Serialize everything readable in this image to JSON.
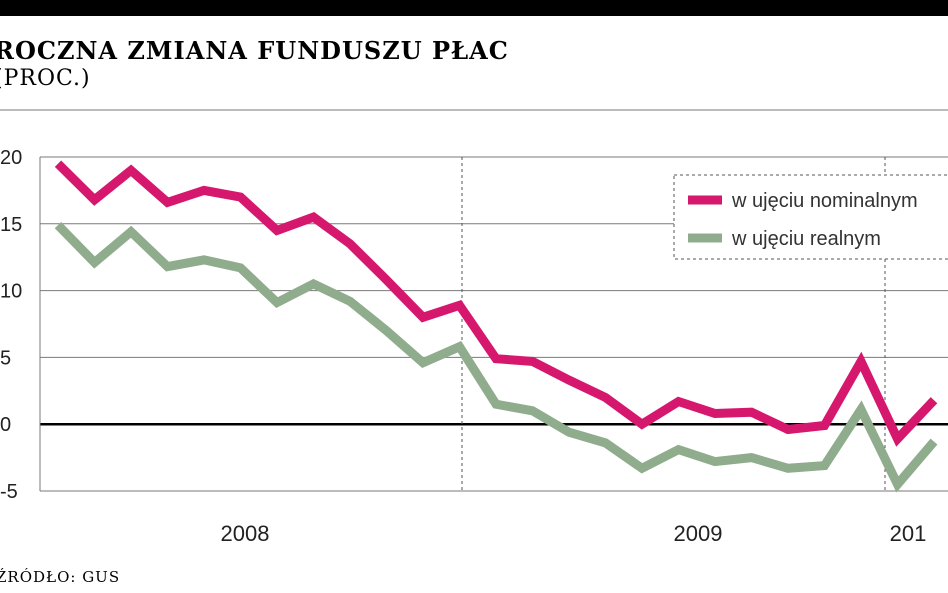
{
  "header": {
    "title": "ROCZNA ZMIANA FUNDUSZU PŁAC",
    "subtitle": "(PROC.)"
  },
  "footer": {
    "source": "ŹRÓDŁO: GUS"
  },
  "colors": {
    "nominal": "#d6176e",
    "real": "#8fac8c",
    "grid": "#7a7a7a",
    "zero": "#000000"
  },
  "chart_data": {
    "type": "line",
    "title": "ROCZNA ZMIANA FUNDUSZU PŁAC",
    "subtitle": "(PROC.)",
    "ylim": [
      -5,
      20
    ],
    "yticks": [
      20,
      15,
      10,
      5,
      0,
      -5
    ],
    "ytick_labels": [
      "20",
      "15",
      "10",
      "5",
      "0",
      "-5"
    ],
    "year_labels": [
      "2008",
      "2009",
      "201"
    ],
    "legend_position": "top-right",
    "grid": true,
    "series": [
      {
        "name": "w ujęciu nominalnym",
        "values": [
          19.5,
          16.8,
          19.0,
          16.6,
          17.5,
          17.0,
          14.5,
          15.5,
          13.5,
          10.8,
          8.0,
          8.9,
          4.9,
          4.7,
          3.3,
          2.0,
          0.0,
          1.7,
          0.8,
          0.9,
          -0.4,
          -0.1,
          4.7,
          -1.1,
          1.8
        ]
      },
      {
        "name": "w ujęciu realnym",
        "values": [
          14.9,
          12.1,
          14.4,
          11.8,
          12.3,
          11.7,
          9.1,
          10.5,
          9.2,
          7.0,
          4.6,
          5.8,
          1.5,
          1.0,
          -0.6,
          -1.4,
          -3.3,
          -1.9,
          -2.8,
          -2.5,
          -3.3,
          -3.1,
          1.1,
          -4.5,
          -1.3
        ]
      }
    ]
  }
}
